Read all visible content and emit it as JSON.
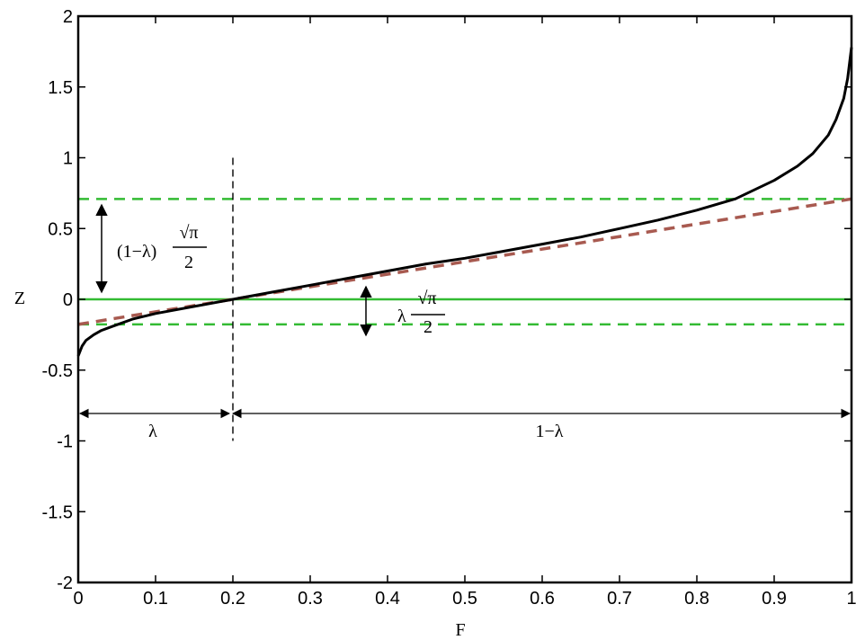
{
  "chart_data": {
    "type": "line",
    "title": "",
    "xlabel": "F",
    "ylabel": "Z",
    "xlim": [
      0,
      1
    ],
    "ylim": [
      -2,
      2
    ],
    "x_ticks": [
      "0",
      "0.1",
      "0.2",
      "0.3",
      "0.4",
      "0.5",
      "0.6",
      "0.7",
      "0.8",
      "0.9",
      "1"
    ],
    "y_ticks": [
      "2",
      "1.5",
      "1",
      "0.5",
      "0",
      "-0.5",
      "-1",
      "-1.5",
      "-2"
    ],
    "grid": false,
    "lambda": 0.2,
    "series": [
      {
        "style": "solid",
        "color": "#000000",
        "x": [
          0.0,
          0.005,
          0.01,
          0.02,
          0.03,
          0.05,
          0.07,
          0.1,
          0.15,
          0.2,
          0.25,
          0.3,
          0.35,
          0.4,
          0.45,
          0.5,
          0.55,
          0.6,
          0.65,
          0.7,
          0.75,
          0.8,
          0.85,
          0.9,
          0.93,
          0.95,
          0.97,
          0.98,
          0.99,
          0.995,
          1.0
        ],
        "y": [
          -0.4,
          -0.33,
          -0.29,
          -0.25,
          -0.22,
          -0.18,
          -0.14,
          -0.1,
          -0.05,
          0.0,
          0.05,
          0.1,
          0.15,
          0.2,
          0.25,
          0.29,
          0.34,
          0.39,
          0.44,
          0.5,
          0.56,
          0.63,
          0.71,
          0.84,
          0.94,
          1.03,
          1.16,
          1.27,
          1.42,
          1.56,
          1.78
        ]
      },
      {
        "style": "dashed",
        "color": "#a85a50",
        "x": [
          0,
          1
        ],
        "y": [
          -0.177,
          0.709
        ]
      }
    ],
    "reference_lines": [
      {
        "y": 0.709,
        "style": "dashed",
        "color": "#33bb33"
      },
      {
        "y": 0.0,
        "style": "solid",
        "color": "#33bb33"
      },
      {
        "y": -0.177,
        "style": "dashed",
        "color": "#33bb33"
      },
      {
        "x": 0.2,
        "style": "dashed",
        "color": "#000000"
      }
    ],
    "annotations": {
      "upper_gap": {
        "prefix": "(1−λ)",
        "numerator": "√π",
        "denominator": "2"
      },
      "lower_gap": {
        "prefix": "λ",
        "numerator": "√π",
        "denominator": "2"
      },
      "left_span": "λ",
      "right_span": "1−λ"
    }
  }
}
